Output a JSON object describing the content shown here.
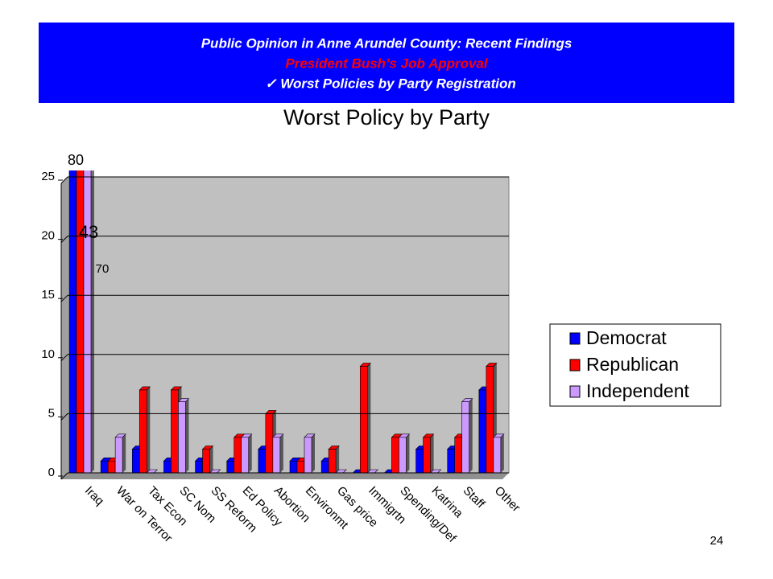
{
  "header": {
    "title": "Public Opinion in Anne Arundel County: Recent Findings",
    "subtitle": "President Bush’s Job Approval",
    "item": "✓ Worst Policies by Party Registration"
  },
  "page_number": "24",
  "chart_data": {
    "type": "bar",
    "title": "Worst Policy by Party",
    "categories": [
      "Iraq",
      "War on Terror",
      "Tax Econ",
      "SC Nom",
      "SS Reform",
      "Ed Policy",
      "Abortion",
      "Environmt",
      "Gas price",
      "Immigrtn",
      "Spending/Def",
      "Katrina",
      "Staff",
      "Other"
    ],
    "series": [
      {
        "name": "Democrat",
        "color": "#0000ff",
        "values": [
          80,
          1,
          2,
          1,
          1,
          1,
          2,
          1,
          1,
          0,
          0,
          2,
          2,
          7
        ],
        "value_labels": [
          "80",
          null,
          null,
          null,
          null,
          null,
          null,
          null,
          null,
          null,
          null,
          null,
          null,
          null
        ]
      },
      {
        "name": "Republican",
        "color": "#ff0000",
        "values": [
          43,
          1,
          7,
          7,
          2,
          3,
          5,
          1,
          2,
          9,
          3,
          3,
          3,
          9
        ],
        "value_labels": [
          "43",
          null,
          null,
          null,
          null,
          null,
          null,
          null,
          null,
          null,
          null,
          null,
          null,
          null
        ]
      },
      {
        "name": "Independent",
        "color": "#cc99ff",
        "values": [
          70,
          3,
          0,
          6,
          0,
          3,
          3,
          3,
          0,
          0,
          3,
          0,
          6,
          3
        ],
        "value_labels": [
          "70",
          null,
          null,
          null,
          null,
          null,
          null,
          null,
          null,
          null,
          null,
          null,
          null,
          null
        ]
      }
    ],
    "ylim": [
      0,
      25
    ],
    "yticks": [
      0,
      5,
      10,
      15,
      20,
      25
    ],
    "grid": true,
    "legend": "right"
  }
}
